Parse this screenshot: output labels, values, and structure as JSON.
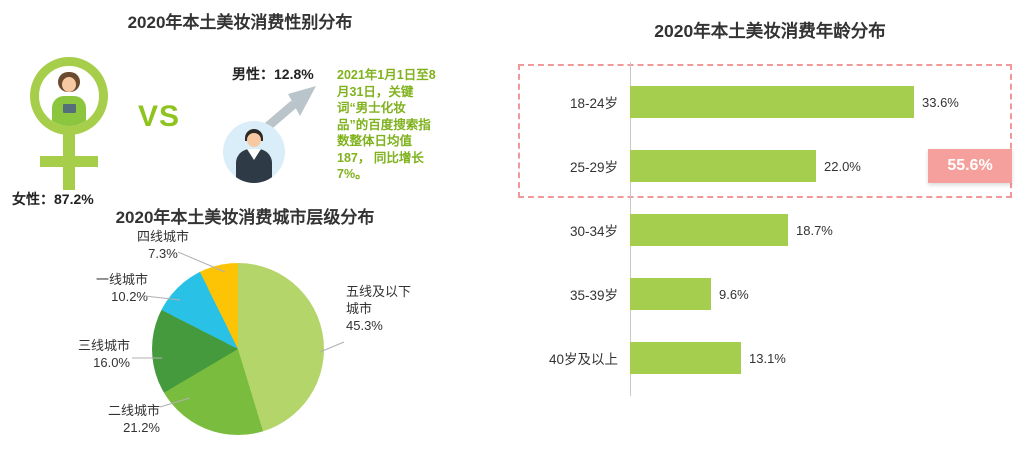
{
  "canvas": {
    "bg": "#ffffff"
  },
  "colors": {
    "title": "#333333",
    "accent_green": "#a6ce4b",
    "vs_green": "#8fc31f",
    "annotation_green": "#7fb21c",
    "bar_green": "#a5ce4f",
    "badge_pink": "#f5a09c",
    "dashed_pink": "#f19999",
    "axis_gray": "#c9c9c9"
  },
  "gender_section": {
    "title": "2020年本土美妆消费性别分布",
    "vs_label": "VS",
    "male_label": "男性：12.8%",
    "female_label": "女性：87.2%",
    "annotation_text": "2021年1月1日至8月31日，关键词“男士化妆品”的百度搜索指数整体日均值187，",
    "annotation_highlight": "同比增长7%。"
  },
  "city_section": {
    "title": "2020年本土美妆消费城市层级分布"
  },
  "age_section": {
    "title": "2020年本土美妆消费年龄分布",
    "highlight_badge": "55.6%"
  },
  "chart_data": [
    {
      "id": "gender",
      "type": "pie",
      "title": "2020年本土美妆消费性别分布",
      "categories": [
        "女性",
        "男性"
      ],
      "values": [
        87.2,
        12.8
      ],
      "unit": "%",
      "annotation": "2021年1月1日至8月31日，关键词“男士化妆品”的百度搜索指数整体日均值187，同比增长7%。"
    },
    {
      "id": "city_tier",
      "type": "pie",
      "title": "2020年本土美妆消费城市层级分布",
      "categories": [
        "五线及以下城市",
        "二线城市",
        "三线城市",
        "一线城市",
        "四线城市"
      ],
      "values": [
        45.3,
        21.2,
        16.0,
        10.2,
        7.3
      ],
      "colors": [
        "#b4d569",
        "#7abd3e",
        "#459a3e",
        "#2ac1e6",
        "#fdc305"
      ],
      "start_angle": 0,
      "direction": "clockwise",
      "unit": "%"
    },
    {
      "id": "age",
      "type": "bar",
      "orientation": "horizontal",
      "title": "2020年本土美妆消费年龄分布",
      "categories": [
        "18-24岁",
        "25-29岁",
        "30-34岁",
        "35-39岁",
        "40岁及以上"
      ],
      "values": [
        33.6,
        22.0,
        18.7,
        9.6,
        13.1
      ],
      "unit": "%",
      "bar_color": "#a5ce4f",
      "xlim": [
        0,
        40
      ],
      "grid": false,
      "legend": false,
      "highlight": {
        "label": "55.6%",
        "applies_to": [
          "18-24岁",
          "25-29岁"
        ]
      }
    }
  ]
}
